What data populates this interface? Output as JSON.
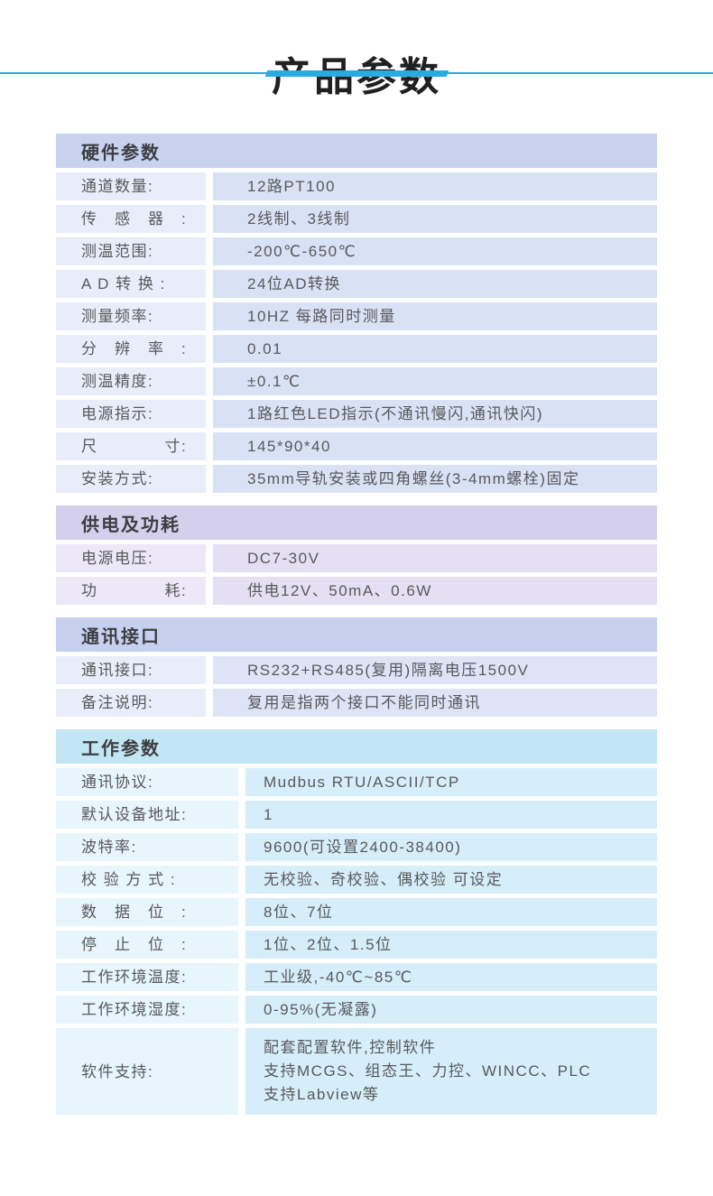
{
  "page": {
    "title": "产品参数"
  },
  "divider": {
    "color": "#29abe2"
  },
  "sections": [
    {
      "title": "硬件参数",
      "colors": {
        "header_bg": "#c6d2ee",
        "label_bg": "#e9edf9",
        "value_bg": "#d9e1f4"
      },
      "rows": [
        {
          "label": "通道数量:",
          "value": "12路PT100"
        },
        {
          "label": "传　感　器　:",
          "value": "2线制、3线制"
        },
        {
          "label": "测温范围:",
          "value": "-200℃-650℃"
        },
        {
          "label": "A D 转 换 :",
          "value": "24位AD转换"
        },
        {
          "label": "测量频率:",
          "value": "10HZ 每路同时测量"
        },
        {
          "label": "分　辨　率　:",
          "value": "0.01"
        },
        {
          "label": "测温精度:",
          "value": "±0.1℃"
        },
        {
          "label": "电源指示:",
          "value": "1路红色LED指示(不通讯慢闪,通讯快闪)"
        },
        {
          "label": "尺　　　　寸:",
          "value": "145*90*40"
        },
        {
          "label": "安装方式:",
          "value": "35mm导轨安装或四角螺丝(3-4mm螺栓)固定"
        }
      ]
    },
    {
      "title": "供电及功耗",
      "colors": {
        "header_bg": "#d4d0ec",
        "label_bg": "#ece8f8",
        "value_bg": "#e4dff3"
      },
      "rows": [
        {
          "label": "电源电压:",
          "value": "DC7-30V"
        },
        {
          "label": "功　　　　耗:",
          "value": "供电12V、50mA、0.6W"
        }
      ]
    },
    {
      "title": "通讯接口",
      "colors": {
        "header_bg": "#c5d1ee",
        "label_bg": "#e9edf9",
        "value_bg": "#dde4f6"
      },
      "rows": [
        {
          "label": "通讯接口:",
          "value": "RS232+RS485(复用)隔离电压1500V"
        },
        {
          "label": "备注说明:",
          "value": "复用是指两个接口不能同时通讯"
        }
      ]
    },
    {
      "title": "工作参数",
      "wide_label": true,
      "colors": {
        "header_bg": "#c3e6f4",
        "label_bg": "#e7f5fc",
        "value_bg": "#d5eefa"
      },
      "rows": [
        {
          "label": "通讯协议:",
          "value": "Mudbus RTU/ASCII/TCP"
        },
        {
          "label": "默认设备地址:",
          "value": "1"
        },
        {
          "label": "波特率:",
          "value": "9600(可设置2400-38400)"
        },
        {
          "label": "校 验 方 式 :",
          "value": "无校验、奇校验、偶校验 可设定"
        },
        {
          "label": "数　据　位　:",
          "value": "8位、7位"
        },
        {
          "label": "停　止　位　:",
          "value": "1位、2位、1.5位"
        },
        {
          "label": "工作环境温度:",
          "value": "工业级,-40℃~85℃"
        },
        {
          "label": "工作环境湿度:",
          "value": "0-95%(无凝露)"
        },
        {
          "label": "软件支持:",
          "value": "配套配置软件,控制软件\n支持MCGS、组态王、力控、WINCC、PLC\n支持Labview等"
        }
      ]
    }
  ]
}
